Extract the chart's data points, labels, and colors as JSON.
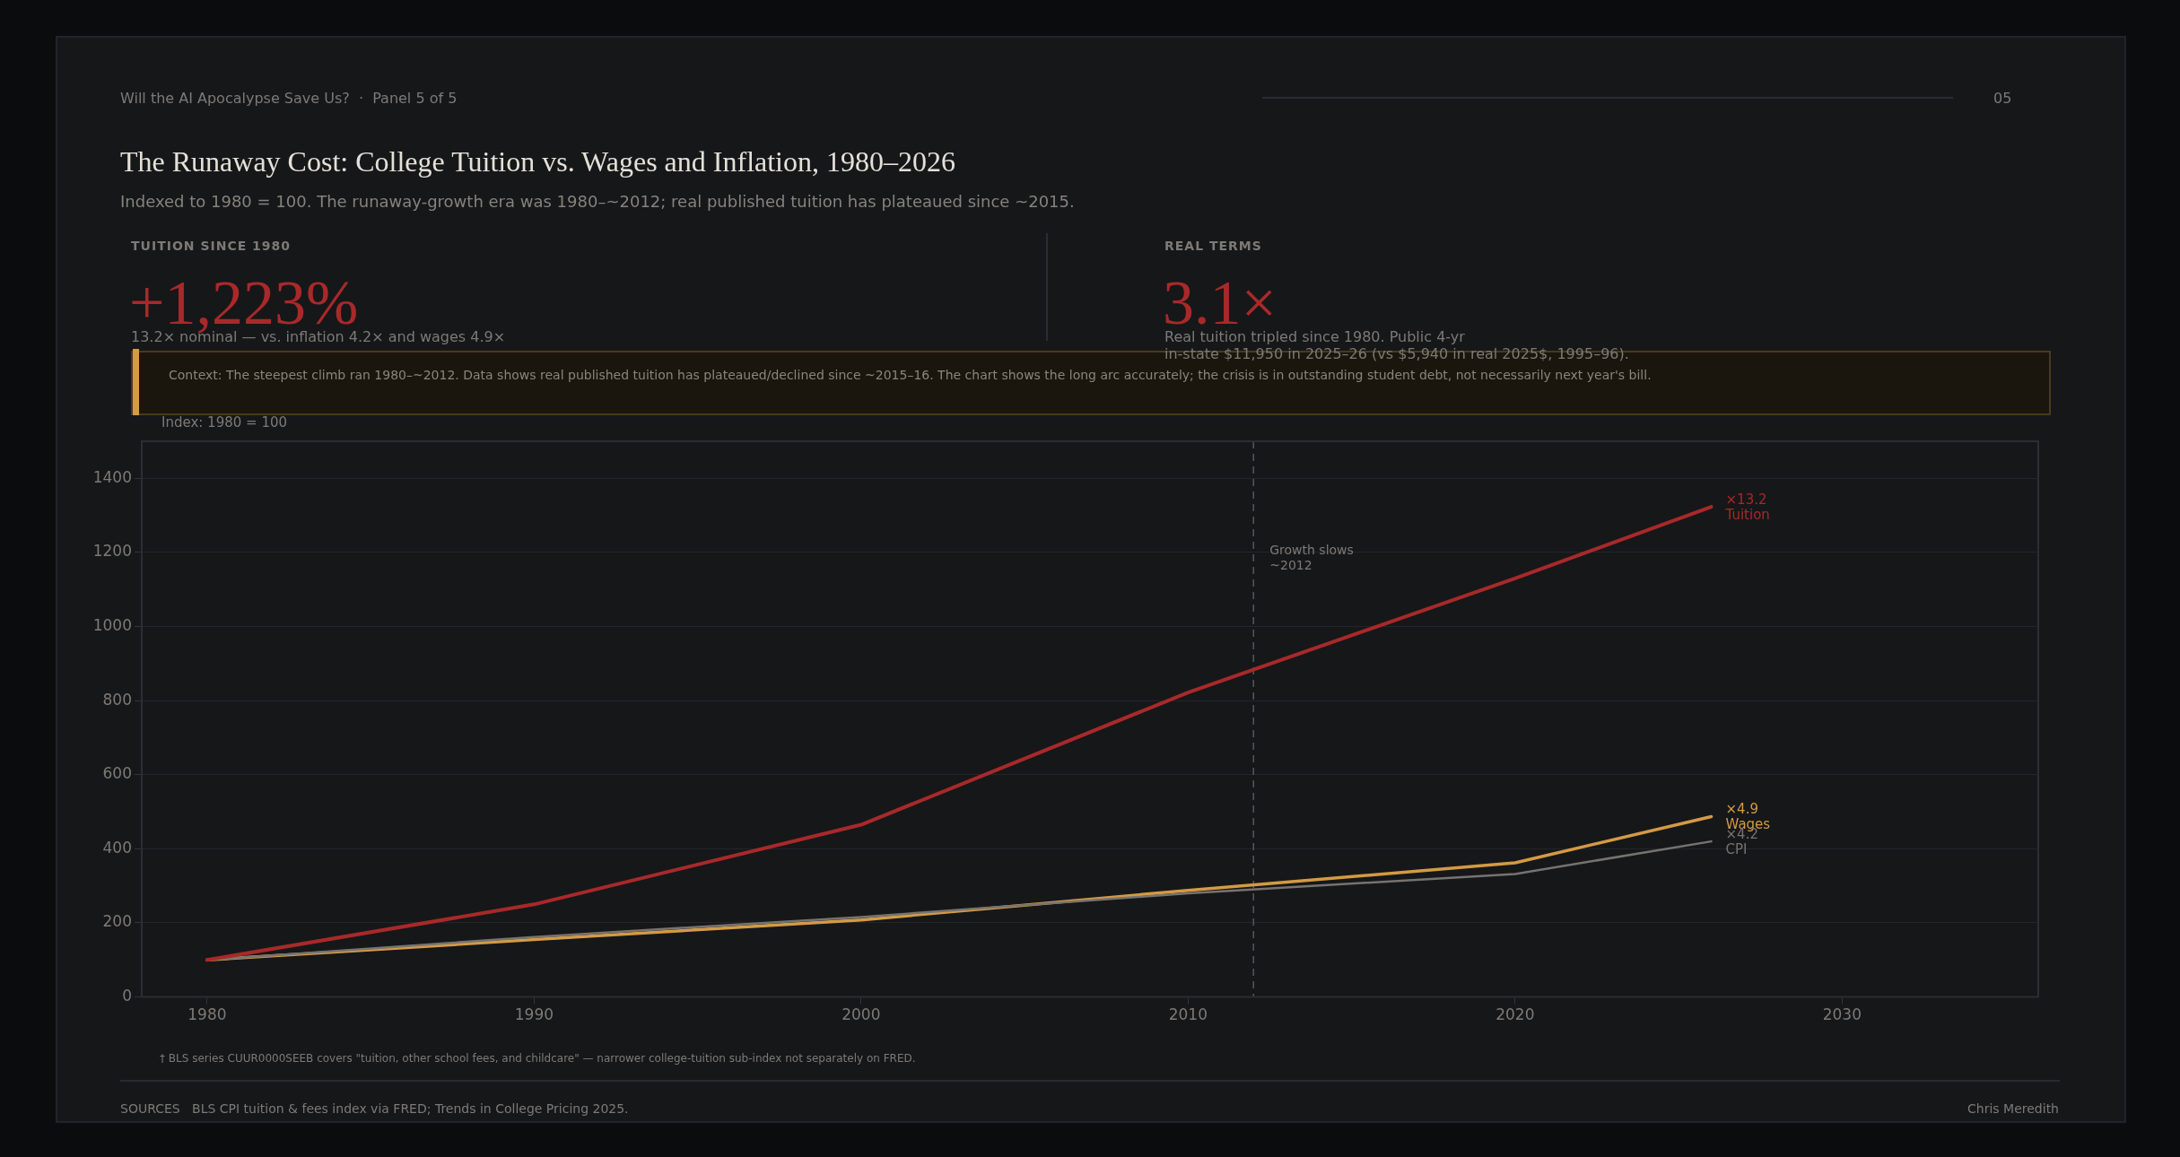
{
  "chart_data": {
    "type": "line",
    "title": "The Runaway Cost: College Tuition vs. Wages and Inflation, 1980–2026",
    "subtitle": "Indexed to 1980 = 100.  The runaway-growth era was 1980–~2012; real published tuition has plateaued since ~2015.",
    "ylabel": "Index: 1980 = 100",
    "annotations": [
      "Will the AI Apocalypse Save Us?  ·  Panel 5 of 5",
      "05",
      "TUITION SINCE 1980",
      "+1,223%",
      "13.2× nominal — vs. inflation 4.2× and wages 4.9×",
      "REAL TERMS",
      "3.1×",
      "Real tuition tripled since 1980. Public 4-yr\nin-state $11,950 in 2025–26 (vs $5,940 in real 2025$, 1995–96).",
      "Context: The steepest climb ran 1980–~2012. Data shows real published tuition has plateaued/declined since ~2015–16. The chart shows the long arc accurately; the crisis is in outstanding student debt, not necessarily next year's bill.",
      "† BLS series CUUR0000SEEB covers \"tuition, other school fees, and childcare\" — narrower college-tuition sub-index not separately on FRED.",
      "SOURCES   BLS CPI tuition & fees index via FRED; Trends in College Pricing 2025.",
      "Chris Meredith",
      "×13.2",
      "×4.2",
      "×4.9"
    ],
    "x": [
      1980,
      1990,
      2000,
      2010,
      2020,
      2026
    ],
    "series": [
      {
        "name": "Tuition",
        "color": "#a8292a",
        "values": [
          100,
          250,
          465,
          822,
          1130,
          1323
        ]
      },
      {
        "name": "CPI",
        "color": "#77736f",
        "values": [
          100,
          162,
          216,
          280,
          332,
          420
        ]
      },
      {
        "name": "Wages",
        "color": "#d49a45",
        "values": [
          100,
          155,
          208,
          288,
          362,
          487
        ]
      }
    ],
    "xlim": [
      1978,
      2036
    ],
    "xticks": [
      1980,
      1990,
      2000,
      2010,
      2020,
      2030
    ],
    "ylim": [
      0,
      1500
    ],
    "yticks": [
      0,
      200,
      400,
      600,
      800,
      1000,
      1200,
      1400
    ],
    "grid": "y",
    "legend": false,
    "marker": "none",
    "line_style": "solid",
    "ref_lines": [
      {
        "axis": "x",
        "value": 2012,
        "label": "Growth slows\n~2012",
        "color": "#55565a",
        "line_style": "dashed"
      }
    ]
  }
}
